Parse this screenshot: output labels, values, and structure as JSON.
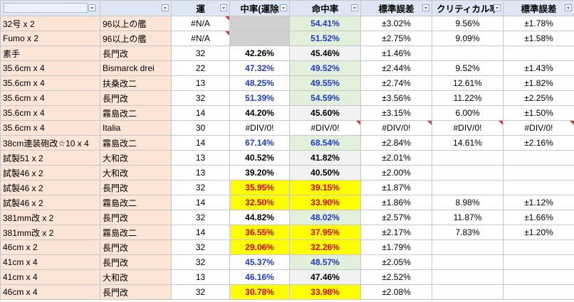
{
  "header": {
    "col_luck": "運",
    "col_hit_excl": "中率(運除",
    "col_hit": "命中率",
    "col_stderr": "標準誤差",
    "col_crit": "クリティカル率",
    "col_stderr2": "標準誤差"
  },
  "rows": [
    {
      "equip": "32号 x 2",
      "ship": "96以上の艦",
      "luck": "#N/A",
      "hit_excl": "",
      "hit": "54.41%",
      "stderr": "±3.02%",
      "crit": "9.56%",
      "stderr2": "±1.78%"
    },
    {
      "equip": "Fumo x 2",
      "ship": "96以上の艦",
      "luck": "#N/A",
      "hit_excl": "",
      "hit": "51.52%",
      "stderr": "±2.75%",
      "crit": "9.09%",
      "stderr2": "±1.58%"
    },
    {
      "equip": "素手",
      "ship": "長門改",
      "luck": "32",
      "hit_excl": "42.26%",
      "hit": "45.46%",
      "stderr": "±1.46%",
      "crit": "",
      "stderr2": ""
    },
    {
      "equip": "35.6cm x 4",
      "ship": "Bismarck drei",
      "luck": "22",
      "hit_excl": "47.32%",
      "hit": "49.52%",
      "stderr": "±2.44%",
      "crit": "9.52%",
      "stderr2": "±1.43%"
    },
    {
      "equip": "35.6cm x 4",
      "ship": "扶桑改二",
      "luck": "13",
      "hit_excl": "48.25%",
      "hit": "49.55%",
      "stderr": "±2.74%",
      "crit": "12.61%",
      "stderr2": "±1.82%"
    },
    {
      "equip": "35.6cm x 4",
      "ship": "長門改",
      "luck": "32",
      "hit_excl": "51.39%",
      "hit": "54.59%",
      "stderr": "±3.56%",
      "crit": "11.22%",
      "stderr2": "±2.25%"
    },
    {
      "equip": "35.6cm x 4",
      "ship": "霧島改二",
      "luck": "14",
      "hit_excl": "44.20%",
      "hit": "45.60%",
      "stderr": "±3.15%",
      "crit": "6.00%",
      "stderr2": "±1.50%"
    },
    {
      "equip": "35.6cm x 4",
      "ship": "Italia",
      "luck": "30",
      "hit_excl": "#DIV/0!",
      "hit": "#DIV/0!",
      "stderr": "#DIV/0!",
      "crit": "#DIV/0!",
      "stderr2": "#DIV/0!"
    },
    {
      "equip": "38cm連装砲改☆10 x 4",
      "ship": "霧島改二",
      "luck": "14",
      "hit_excl": "67.14%",
      "hit": "68.54%",
      "stderr": "±2.84%",
      "crit": "14.61%",
      "stderr2": "±2.16%"
    },
    {
      "equip": "試製51 x 2",
      "ship": "大和改",
      "luck": "13",
      "hit_excl": "40.52%",
      "hit": "41.82%",
      "stderr": "±2.01%",
      "crit": "",
      "stderr2": ""
    },
    {
      "equip": "試製46 x 2",
      "ship": "大和改",
      "luck": "13",
      "hit_excl": "39.20%",
      "hit": "40.50%",
      "stderr": "±2.00%",
      "crit": "",
      "stderr2": ""
    },
    {
      "equip": "試製46 x 2",
      "ship": "長門改",
      "luck": "32",
      "hit_excl": "35.95%",
      "hit": "39.15%",
      "stderr": "±1.87%",
      "crit": "",
      "stderr2": ""
    },
    {
      "equip": "試製46 x 2",
      "ship": "霧島改二",
      "luck": "14",
      "hit_excl": "32.50%",
      "hit": "33.90%",
      "stderr": "±1.86%",
      "crit": "8.98%",
      "stderr2": "±1.12%"
    },
    {
      "equip": "381mm改 x 2",
      "ship": "長門改",
      "luck": "32",
      "hit_excl": "44.82%",
      "hit": "48.02%",
      "stderr": "±2.57%",
      "crit": "11.87%",
      "stderr2": "±1.66%"
    },
    {
      "equip": "381mm改 x 2",
      "ship": "霧島改二",
      "luck": "14",
      "hit_excl": "36.55%",
      "hit": "37.95%",
      "stderr": "±2.17%",
      "crit": "7.83%",
      "stderr2": "±1.20%"
    },
    {
      "equip": "46cm x 2",
      "ship": "長門改",
      "luck": "32",
      "hit_excl": "29.06%",
      "hit": "32.26%",
      "stderr": "±1.79%",
      "crit": "",
      "stderr2": ""
    },
    {
      "equip": "41cm x 4",
      "ship": "長門改",
      "luck": "32",
      "hit_excl": "45.37%",
      "hit": "48.57%",
      "stderr": "±2.05%",
      "crit": "",
      "stderr2": ""
    },
    {
      "equip": "41cm x 4",
      "ship": "大和改",
      "luck": "13",
      "hit_excl": "46.16%",
      "hit": "47.46%",
      "stderr": "±2.52%",
      "crit": "",
      "stderr2": ""
    },
    {
      "equip": "46cm x 4",
      "ship": "長門改",
      "luck": "32",
      "hit_excl": "30.78%",
      "hit": "33.98%",
      "stderr": "±2.08%",
      "crit": "",
      "stderr2": ""
    }
  ],
  "styles": {
    "hit_excl": [
      "gray",
      "gray",
      "black",
      "blue",
      "blue",
      "blue",
      "black",
      "plain",
      "blue",
      "black",
      "black",
      "red-yellow",
      "red-yellow",
      "black",
      "red-yellow",
      "red-yellow",
      "blue",
      "blue",
      "red-yellow"
    ],
    "hit": [
      "blue-green",
      "blue-green",
      "black-light",
      "blue-green",
      "blue-green",
      "blue-green",
      "black-light",
      "plain",
      "blue-green",
      "black-light",
      "black-light",
      "red-yellow",
      "red-yellow",
      "blue-green",
      "red-yellow",
      "red-yellow",
      "blue-green",
      "black-light",
      "red-yellow"
    ]
  }
}
